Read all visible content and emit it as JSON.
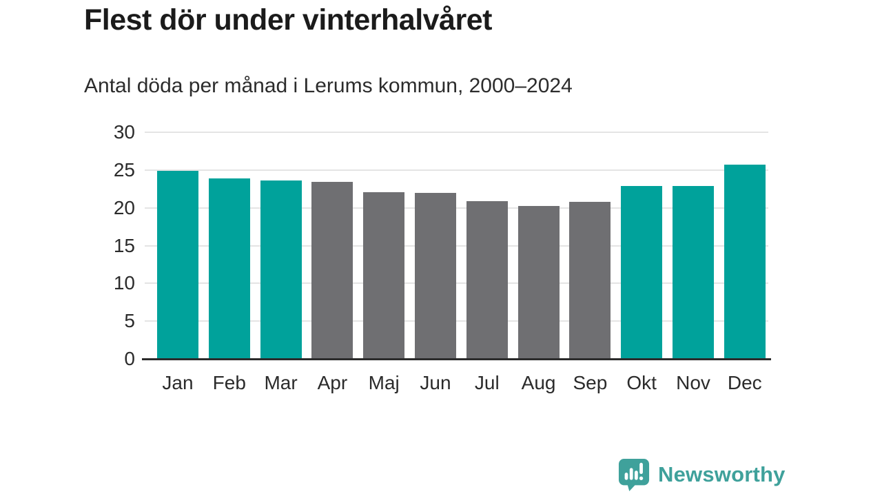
{
  "title": "Flest dör under vinterhalvåret",
  "subtitle": "Antal döda per månad i Lerums kommun, 2000–2024",
  "chart_data": {
    "type": "bar",
    "title": "Flest dör under vinterhalvåret",
    "subtitle": "Antal döda per månad i Lerums kommun, 2000–2024",
    "categories": [
      "Jan",
      "Feb",
      "Mar",
      "Apr",
      "Maj",
      "Jun",
      "Jul",
      "Aug",
      "Sep",
      "Okt",
      "Nov",
      "Dec"
    ],
    "values": [
      24.9,
      23.9,
      23.6,
      23.4,
      22.1,
      22.0,
      20.9,
      20.2,
      20.8,
      22.9,
      22.9,
      25.7
    ],
    "highlighted": [
      true,
      true,
      true,
      false,
      false,
      false,
      false,
      false,
      false,
      true,
      true,
      true
    ],
    "ylim": [
      0,
      30
    ],
    "yticks": [
      0,
      5,
      10,
      15,
      20,
      25,
      30
    ],
    "grid": true,
    "legend": null,
    "colors": {
      "highlight_teal": "#00a29b",
      "muted_gray": "#6f6f72",
      "axis": "#2b2b2b",
      "gridline": "#e4e4e4",
      "text": "#1b1b1b"
    }
  },
  "footer": {
    "brand": "Newsworthy",
    "brand_color": "#3fa19b",
    "logo_icon": "newsworthy-logo-icon"
  }
}
